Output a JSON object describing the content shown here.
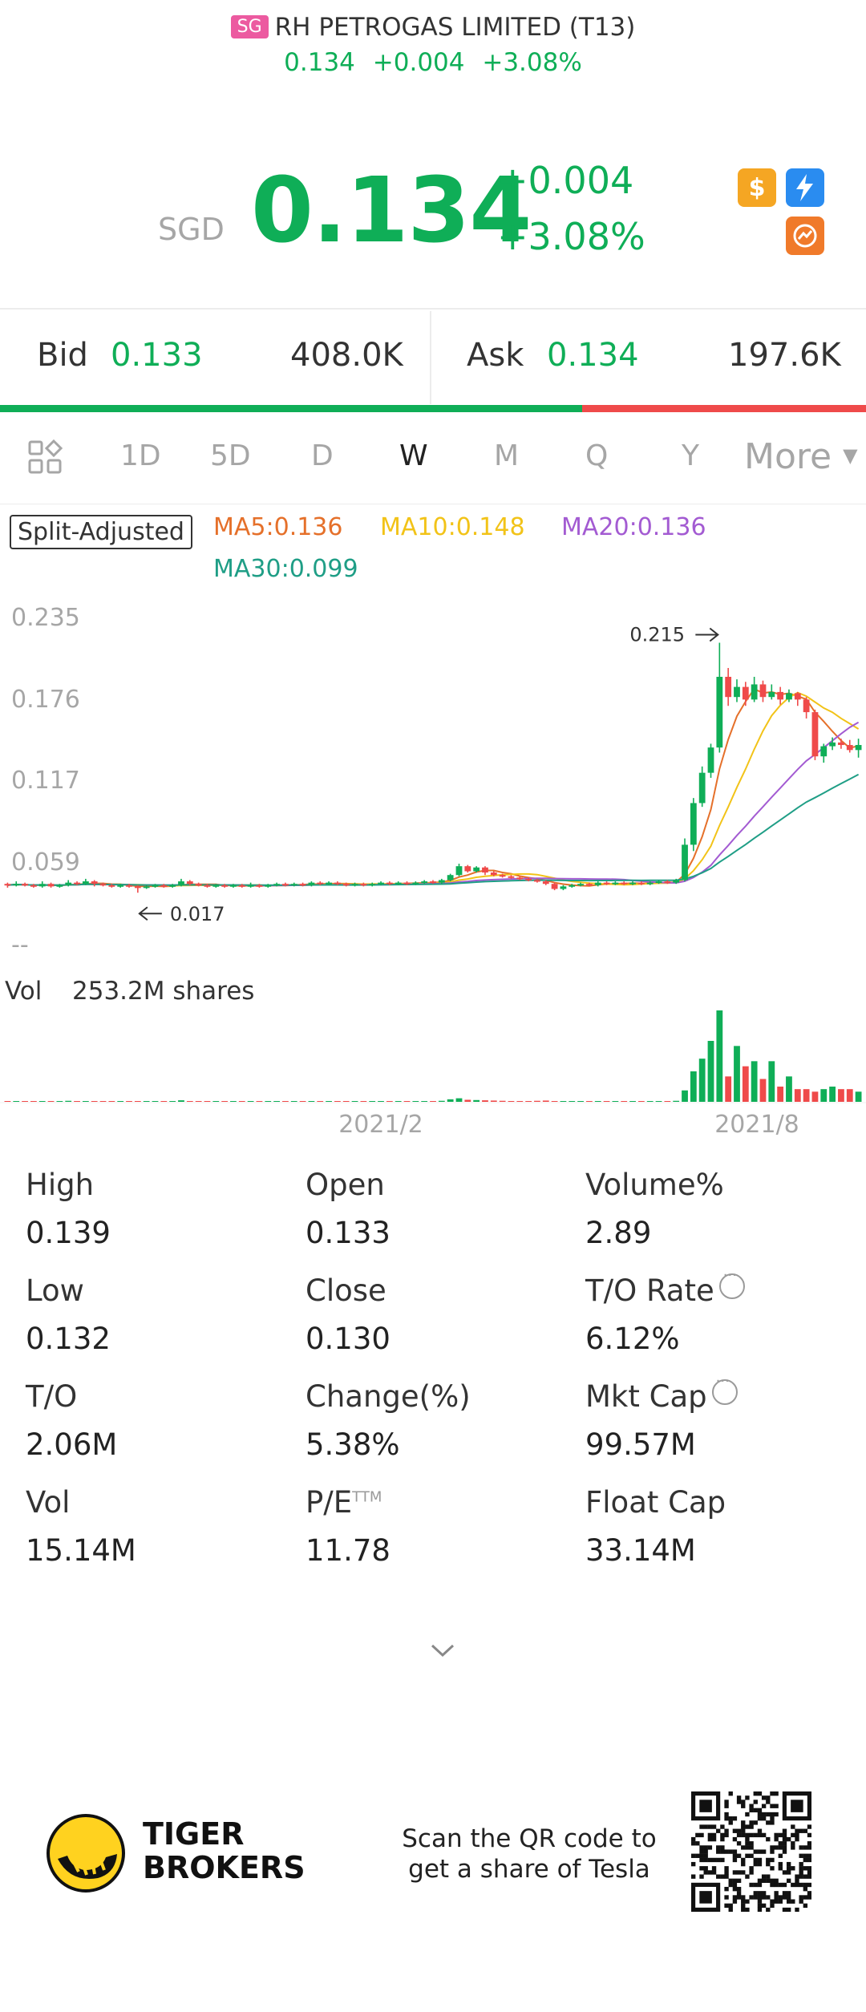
{
  "header": {
    "market_badge": "SG",
    "title": "RH PETROGAS LIMITED (T13)",
    "price": "0.134",
    "change": "+0.004",
    "change_pct": "+3.08%"
  },
  "quote": {
    "currency": "SGD",
    "price": "0.134",
    "change": "+0.004",
    "change_pct": "+3.08%",
    "icons": [
      "dollar-badge-icon",
      "lightning-level1-icon",
      "options-badge-icon"
    ]
  },
  "bid_ask": {
    "bid_label": "Bid",
    "bid_price": "0.133",
    "bid_size": "408.0K",
    "ask_label": "Ask",
    "ask_price": "0.134",
    "ask_size": "197.6K",
    "bid_share": 0.672
  },
  "tabs": {
    "items": [
      "1D",
      "5D",
      "D",
      "W",
      "M",
      "Q",
      "Y"
    ],
    "active": "W",
    "more_label": "More"
  },
  "indicators": {
    "split_label": "Split-Adjusted",
    "ma5": "MA5:0.136",
    "ma10": "MA10:0.148",
    "ma20": "MA20:0.136",
    "ma30": "MA30:0.099"
  },
  "chart_data": {
    "type": "candlestick",
    "period": "W",
    "y_ticks": [
      "0.235",
      "0.176",
      "0.117",
      "0.059",
      "--"
    ],
    "ylim": [
      0.0,
      0.235
    ],
    "high_marker": "0.215",
    "low_marker": "0.017",
    "x_ticks": [
      "2021/2",
      "2021/8"
    ],
    "volume_label": "Vol",
    "volume_value": "253.2M shares",
    "candles": [
      {
        "o": 0.024,
        "c": 0.023,
        "h": 0.025,
        "l": 0.021
      },
      {
        "o": 0.023,
        "c": 0.024,
        "h": 0.026,
        "l": 0.022
      },
      {
        "o": 0.024,
        "c": 0.023,
        "h": 0.025,
        "l": 0.022
      },
      {
        "o": 0.023,
        "c": 0.022,
        "h": 0.024,
        "l": 0.021
      },
      {
        "o": 0.022,
        "c": 0.024,
        "h": 0.026,
        "l": 0.021
      },
      {
        "o": 0.024,
        "c": 0.022,
        "h": 0.025,
        "l": 0.021
      },
      {
        "o": 0.022,
        "c": 0.023,
        "h": 0.024,
        "l": 0.021
      },
      {
        "o": 0.023,
        "c": 0.025,
        "h": 0.027,
        "l": 0.022
      },
      {
        "o": 0.025,
        "c": 0.024,
        "h": 0.026,
        "l": 0.023
      },
      {
        "o": 0.024,
        "c": 0.026,
        "h": 0.028,
        "l": 0.023
      },
      {
        "o": 0.026,
        "c": 0.024,
        "h": 0.027,
        "l": 0.022
      },
      {
        "o": 0.024,
        "c": 0.023,
        "h": 0.025,
        "l": 0.022
      },
      {
        "o": 0.023,
        "c": 0.022,
        "h": 0.024,
        "l": 0.021
      },
      {
        "o": 0.022,
        "c": 0.023,
        "h": 0.024,
        "l": 0.021
      },
      {
        "o": 0.023,
        "c": 0.022,
        "h": 0.024,
        "l": 0.021
      },
      {
        "o": 0.022,
        "c": 0.021,
        "h": 0.023,
        "l": 0.017
      },
      {
        "o": 0.021,
        "c": 0.022,
        "h": 0.023,
        "l": 0.02
      },
      {
        "o": 0.022,
        "c": 0.023,
        "h": 0.024,
        "l": 0.021
      },
      {
        "o": 0.023,
        "c": 0.022,
        "h": 0.024,
        "l": 0.021
      },
      {
        "o": 0.022,
        "c": 0.023,
        "h": 0.024,
        "l": 0.021
      },
      {
        "o": 0.023,
        "c": 0.026,
        "h": 0.028,
        "l": 0.022
      },
      {
        "o": 0.026,
        "c": 0.024,
        "h": 0.027,
        "l": 0.023
      },
      {
        "o": 0.024,
        "c": 0.023,
        "h": 0.025,
        "l": 0.022
      },
      {
        "o": 0.023,
        "c": 0.022,
        "h": 0.024,
        "l": 0.021
      },
      {
        "o": 0.022,
        "c": 0.023,
        "h": 0.024,
        "l": 0.021
      },
      {
        "o": 0.023,
        "c": 0.022,
        "h": 0.024,
        "l": 0.021
      },
      {
        "o": 0.022,
        "c": 0.023,
        "h": 0.024,
        "l": 0.021
      },
      {
        "o": 0.023,
        "c": 0.022,
        "h": 0.024,
        "l": 0.021
      },
      {
        "o": 0.022,
        "c": 0.023,
        "h": 0.025,
        "l": 0.021
      },
      {
        "o": 0.023,
        "c": 0.022,
        "h": 0.024,
        "l": 0.021
      },
      {
        "o": 0.022,
        "c": 0.023,
        "h": 0.024,
        "l": 0.021
      },
      {
        "o": 0.023,
        "c": 0.024,
        "h": 0.025,
        "l": 0.022
      },
      {
        "o": 0.024,
        "c": 0.023,
        "h": 0.025,
        "l": 0.022
      },
      {
        "o": 0.023,
        "c": 0.024,
        "h": 0.025,
        "l": 0.022
      },
      {
        "o": 0.024,
        "c": 0.023,
        "h": 0.025,
        "l": 0.022
      },
      {
        "o": 0.023,
        "c": 0.025,
        "h": 0.026,
        "l": 0.022
      },
      {
        "o": 0.025,
        "c": 0.024,
        "h": 0.026,
        "l": 0.023
      },
      {
        "o": 0.024,
        "c": 0.025,
        "h": 0.026,
        "l": 0.023
      },
      {
        "o": 0.025,
        "c": 0.024,
        "h": 0.026,
        "l": 0.023
      },
      {
        "o": 0.024,
        "c": 0.023,
        "h": 0.025,
        "l": 0.022
      },
      {
        "o": 0.023,
        "c": 0.024,
        "h": 0.025,
        "l": 0.022
      },
      {
        "o": 0.024,
        "c": 0.023,
        "h": 0.025,
        "l": 0.022
      },
      {
        "o": 0.023,
        "c": 0.024,
        "h": 0.025,
        "l": 0.022
      },
      {
        "o": 0.024,
        "c": 0.025,
        "h": 0.026,
        "l": 0.023
      },
      {
        "o": 0.025,
        "c": 0.024,
        "h": 0.026,
        "l": 0.023
      },
      {
        "o": 0.024,
        "c": 0.025,
        "h": 0.026,
        "l": 0.023
      },
      {
        "o": 0.025,
        "c": 0.024,
        "h": 0.026,
        "l": 0.023
      },
      {
        "o": 0.024,
        "c": 0.025,
        "h": 0.026,
        "l": 0.023
      },
      {
        "o": 0.025,
        "c": 0.026,
        "h": 0.027,
        "l": 0.024
      },
      {
        "o": 0.026,
        "c": 0.025,
        "h": 0.027,
        "l": 0.024
      },
      {
        "o": 0.025,
        "c": 0.027,
        "h": 0.028,
        "l": 0.024
      },
      {
        "o": 0.027,
        "c": 0.031,
        "h": 0.032,
        "l": 0.026
      },
      {
        "o": 0.031,
        "c": 0.038,
        "h": 0.04,
        "l": 0.03
      },
      {
        "o": 0.038,
        "c": 0.034,
        "h": 0.039,
        "l": 0.033
      },
      {
        "o": 0.034,
        "c": 0.037,
        "h": 0.038,
        "l": 0.033
      },
      {
        "o": 0.037,
        "c": 0.033,
        "h": 0.038,
        "l": 0.031
      },
      {
        "o": 0.033,
        "c": 0.031,
        "h": 0.034,
        "l": 0.03
      },
      {
        "o": 0.031,
        "c": 0.03,
        "h": 0.032,
        "l": 0.029
      },
      {
        "o": 0.03,
        "c": 0.029,
        "h": 0.031,
        "l": 0.028
      },
      {
        "o": 0.029,
        "c": 0.028,
        "h": 0.03,
        "l": 0.027
      },
      {
        "o": 0.028,
        "c": 0.027,
        "h": 0.029,
        "l": 0.026
      },
      {
        "o": 0.027,
        "c": 0.026,
        "h": 0.028,
        "l": 0.025
      },
      {
        "o": 0.026,
        "c": 0.024,
        "h": 0.027,
        "l": 0.023
      },
      {
        "o": 0.024,
        "c": 0.02,
        "h": 0.025,
        "l": 0.019
      },
      {
        "o": 0.02,
        "c": 0.022,
        "h": 0.023,
        "l": 0.019
      },
      {
        "o": 0.022,
        "c": 0.023,
        "h": 0.024,
        "l": 0.021
      },
      {
        "o": 0.023,
        "c": 0.024,
        "h": 0.025,
        "l": 0.022
      },
      {
        "o": 0.024,
        "c": 0.023,
        "h": 0.025,
        "l": 0.022
      },
      {
        "o": 0.023,
        "c": 0.025,
        "h": 0.026,
        "l": 0.022
      },
      {
        "o": 0.025,
        "c": 0.024,
        "h": 0.026,
        "l": 0.023
      },
      {
        "o": 0.024,
        "c": 0.025,
        "h": 0.026,
        "l": 0.023
      },
      {
        "o": 0.025,
        "c": 0.024,
        "h": 0.026,
        "l": 0.023
      },
      {
        "o": 0.024,
        "c": 0.025,
        "h": 0.026,
        "l": 0.023
      },
      {
        "o": 0.025,
        "c": 0.024,
        "h": 0.026,
        "l": 0.023
      },
      {
        "o": 0.024,
        "c": 0.025,
        "h": 0.026,
        "l": 0.023
      },
      {
        "o": 0.025,
        "c": 0.026,
        "h": 0.027,
        "l": 0.024
      },
      {
        "o": 0.026,
        "c": 0.025,
        "h": 0.027,
        "l": 0.024
      },
      {
        "o": 0.025,
        "c": 0.027,
        "h": 0.028,
        "l": 0.024
      },
      {
        "o": 0.027,
        "c": 0.055,
        "h": 0.06,
        "l": 0.026
      },
      {
        "o": 0.055,
        "c": 0.088,
        "h": 0.092,
        "l": 0.05
      },
      {
        "o": 0.088,
        "c": 0.112,
        "h": 0.117,
        "l": 0.085
      },
      {
        "o": 0.112,
        "c": 0.132,
        "h": 0.135,
        "l": 0.108
      },
      {
        "o": 0.132,
        "c": 0.188,
        "h": 0.215,
        "l": 0.128
      },
      {
        "o": 0.188,
        "c": 0.172,
        "h": 0.195,
        "l": 0.165
      },
      {
        "o": 0.172,
        "c": 0.18,
        "h": 0.186,
        "l": 0.168
      },
      {
        "o": 0.18,
        "c": 0.17,
        "h": 0.184,
        "l": 0.165
      },
      {
        "o": 0.17,
        "c": 0.182,
        "h": 0.188,
        "l": 0.168
      },
      {
        "o": 0.182,
        "c": 0.172,
        "h": 0.185,
        "l": 0.168
      },
      {
        "o": 0.172,
        "c": 0.176,
        "h": 0.182,
        "l": 0.17
      },
      {
        "o": 0.176,
        "c": 0.17,
        "h": 0.18,
        "l": 0.166
      },
      {
        "o": 0.17,
        "c": 0.175,
        "h": 0.178,
        "l": 0.168
      },
      {
        "o": 0.175,
        "c": 0.17,
        "h": 0.176,
        "l": 0.165
      },
      {
        "o": 0.17,
        "c": 0.16,
        "h": 0.172,
        "l": 0.155
      },
      {
        "o": 0.16,
        "c": 0.125,
        "h": 0.162,
        "l": 0.122
      },
      {
        "o": 0.125,
        "c": 0.133,
        "h": 0.135,
        "l": 0.12
      },
      {
        "o": 0.133,
        "c": 0.136,
        "h": 0.14,
        "l": 0.13
      },
      {
        "o": 0.136,
        "c": 0.134,
        "h": 0.139,
        "l": 0.131
      },
      {
        "o": 0.134,
        "c": 0.13,
        "h": 0.138,
        "l": 0.128
      },
      {
        "o": 0.13,
        "c": 0.134,
        "h": 0.139,
        "l": 0.124
      }
    ],
    "volumes": [
      0.3,
      0.2,
      0.2,
      0.3,
      0.2,
      0.2,
      0.3,
      0.4,
      0.2,
      0.3,
      0.2,
      0.2,
      0.2,
      0.2,
      0.2,
      0.3,
      0.2,
      0.2,
      0.2,
      0.2,
      0.6,
      0.3,
      0.2,
      0.2,
      0.2,
      0.2,
      0.2,
      0.2,
      0.3,
      0.2,
      0.2,
      0.2,
      0.2,
      0.2,
      0.2,
      0.3,
      0.2,
      0.2,
      0.2,
      0.2,
      0.2,
      0.2,
      0.2,
      0.2,
      0.2,
      0.2,
      0.2,
      0.2,
      0.3,
      0.2,
      0.4,
      1.0,
      1.4,
      0.8,
      0.7,
      0.6,
      0.5,
      0.4,
      0.3,
      0.3,
      0.3,
      0.4,
      0.5,
      0.3,
      0.2,
      0.2,
      0.2,
      0.2,
      0.2,
      0.2,
      0.2,
      0.2,
      0.2,
      0.2,
      0.2,
      0.3,
      0.3,
      0.4,
      4.5,
      12.0,
      17.0,
      24.0,
      36.0,
      10.0,
      22.0,
      14.0,
      16.0,
      9.0,
      16.0,
      6.0,
      10.0,
      5.0,
      5.0,
      4.0,
      5.0,
      6.0,
      5.0,
      5.0,
      4.0
    ],
    "ma_colors": {
      "ma5": "#e5702a",
      "ma10": "#f2c318",
      "ma20": "#a35bd2",
      "ma30": "#1f9e86"
    }
  },
  "stats": [
    {
      "label": "High",
      "value": "0.139"
    },
    {
      "label": "Open",
      "value": "0.133"
    },
    {
      "label": "Volume%",
      "value": "2.89"
    },
    {
      "label": "Low",
      "value": "0.132"
    },
    {
      "label": "Close",
      "value": "0.130"
    },
    {
      "label": "T/O Rate",
      "value": "6.12%"
    },
    {
      "label": "T/O",
      "value": "2.06M"
    },
    {
      "label": "Change(%)",
      "value": "5.38%"
    },
    {
      "label": "Mkt Cap",
      "value": "99.57M"
    },
    {
      "label": "Vol",
      "value": "15.14M"
    },
    {
      "label": "P/E",
      "value": "11.78",
      "superscript": "TTM"
    },
    {
      "label": "Float Cap",
      "value": "33.14M"
    }
  ],
  "footer": {
    "brand_line1": "TIGER",
    "brand_line2": "BROKERS",
    "promo_line1": "Scan the QR code to",
    "promo_line2": "get a share of Tesla"
  },
  "colors": {
    "up": "#0fae57",
    "down": "#ef4a4a",
    "badge": "#ec5aa0"
  }
}
